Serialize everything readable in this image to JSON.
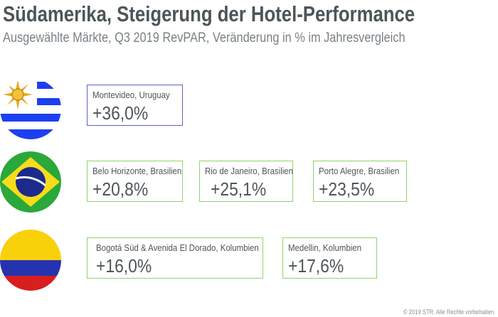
{
  "header": {
    "title": "Südamerika, Steigerung der Hotel-Performance",
    "subtitle": "Ausgewählte Märkte, Q3 2019 RevPAR, Veränderung in % im Jahresvergleich"
  },
  "rows": [
    {
      "flag": "uruguay-flag",
      "markets": [
        {
          "location": "Montevideo, Uruguay",
          "value": "+36,0%"
        }
      ]
    },
    {
      "flag": "brazil-flag",
      "markets": [
        {
          "location": "Belo Horizonte, Brasilien",
          "value": "+20,8%"
        },
        {
          "location": "Rio de Janeiro, Brasilien",
          "value": "+25,1%"
        },
        {
          "location": "Porto Alegre, Brasilien",
          "value": "+23,5%"
        }
      ]
    },
    {
      "flag": "colombia-flag",
      "markets": [
        {
          "location": "Bogotá Süd & Avenida El Dorado, Kolumbien",
          "value": "+16,0%"
        },
        {
          "location": "Medellin, Kolumbien",
          "value": "+17,6%"
        }
      ]
    }
  ],
  "colors": {
    "uruguay_border": "#5a5fd0",
    "brazil_colombia_border": "#8fd46a",
    "text": "#4d5559"
  },
  "footer": {
    "copyright": "© 2019 STR. Alle Rechte vorbehalten."
  }
}
